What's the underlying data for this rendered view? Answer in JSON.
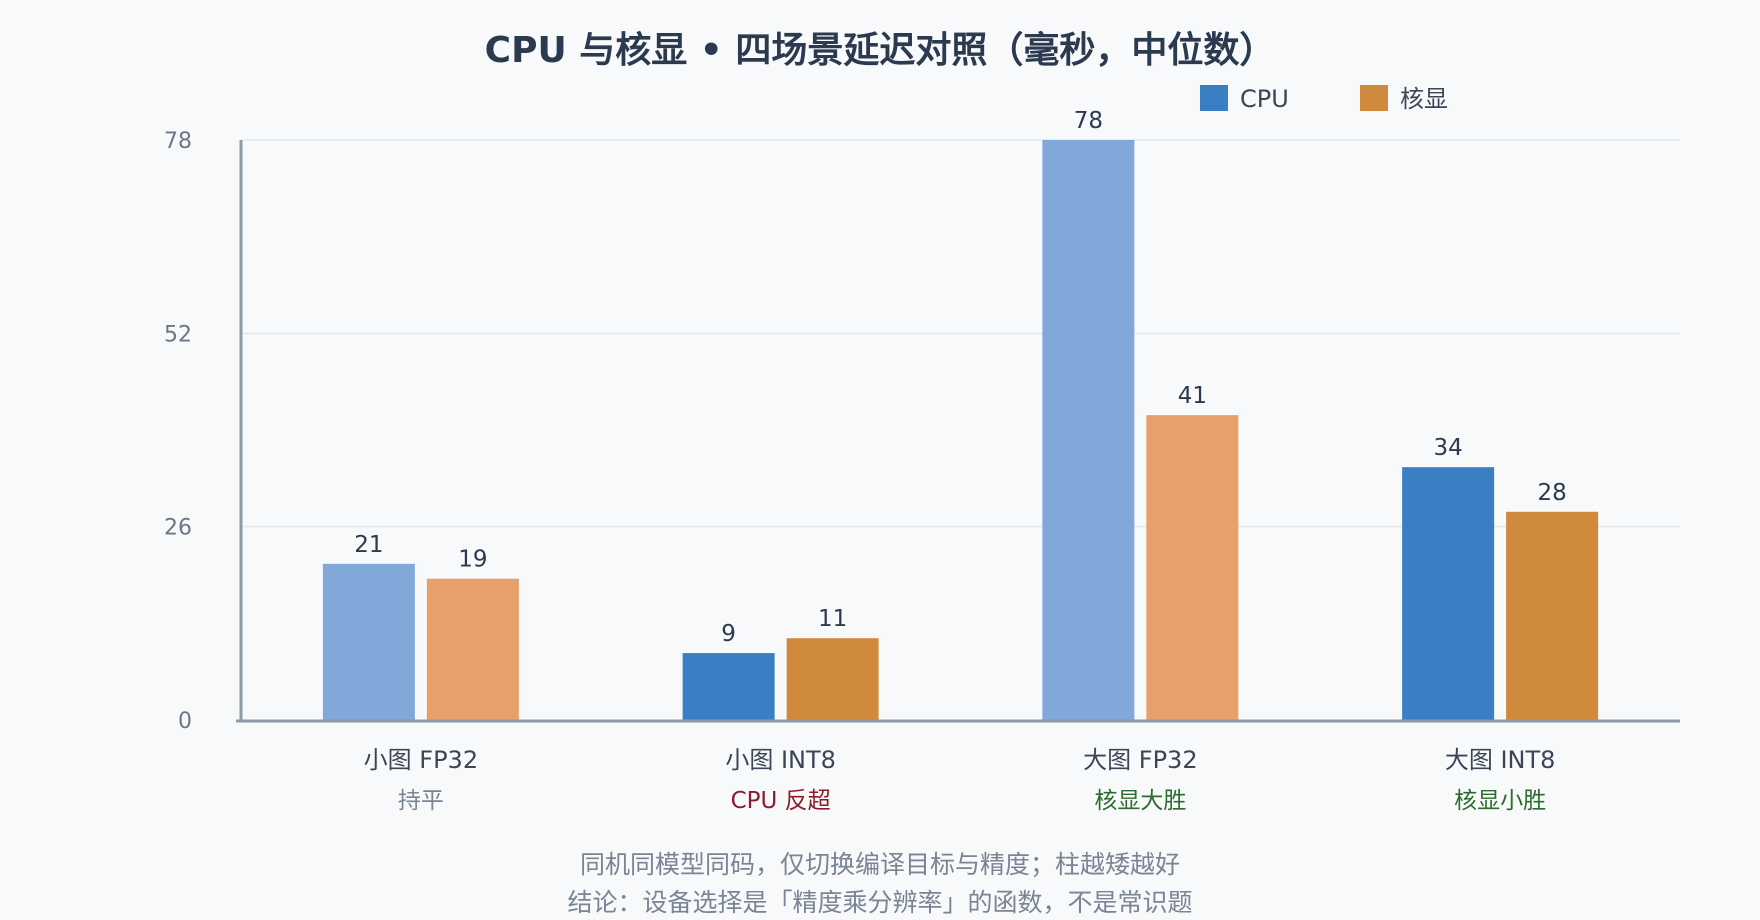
{
  "chart_data": {
    "type": "bar",
    "title": "CPU 与核显 • 四场景延迟对照（毫秒，中位数）",
    "categories": [
      "小图 FP32",
      "小图 INT8",
      "大图 FP32",
      "大图 INT8"
    ],
    "category_notes": [
      "持平",
      "CPU 反超",
      "核显大胜",
      "核显小胜"
    ],
    "note_colors": [
      "#7a8594",
      "#8b1c2c",
      "#2e6b2e",
      "#2e6b2e"
    ],
    "series": [
      {
        "name": "CPU",
        "values": [
          21,
          9,
          78,
          34
        ],
        "color": "#3a7fc4",
        "muted_color": "#80a8d9"
      },
      {
        "name": "核显",
        "values": [
          19,
          11,
          41,
          28
        ],
        "color": "#cf8a3e",
        "muted_color": "#e8a06a"
      }
    ],
    "winner_emphasis": [
      [
        false,
        false
      ],
      [
        true,
        true
      ],
      [
        false,
        false
      ],
      [
        true,
        true
      ]
    ],
    "yticks": [
      0,
      26,
      52,
      78
    ],
    "ylim": [
      0,
      78
    ],
    "xlabel": "",
    "ylabel": "",
    "grid": true,
    "legend_position": "top-right",
    "footnotes": [
      "同机同模型同码，仅切换编译目标与精度；柱越矮越好",
      "结论：设备选择是「精度乘分辨率」的函数，不是常识题"
    ]
  }
}
